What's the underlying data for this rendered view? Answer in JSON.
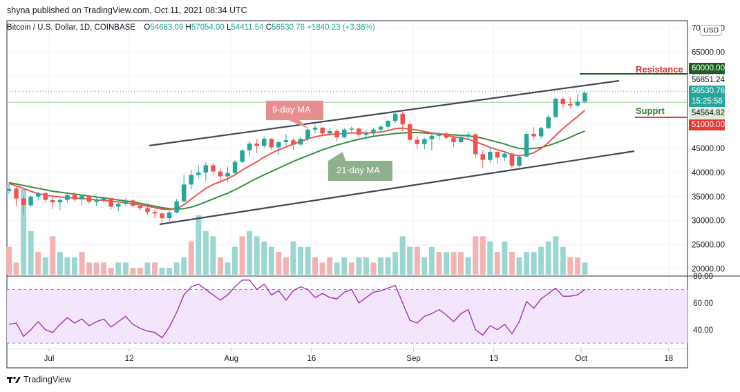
{
  "header": {
    "publisher_line": "shyna published on TradingView.com, Oct 11, 2021 08:34 UTC"
  },
  "symbol": {
    "name": "Bitcoin / U.S. Dollar, 1D, COINBASE",
    "open_label": "O",
    "open": "54683.09",
    "high_label": "H",
    "high": "57054.00",
    "low_label": "L",
    "low": "54411.54",
    "close_label": "C",
    "close": "56530.76",
    "change": "+1840.23 (+3.36%)"
  },
  "currency_button": "USD",
  "price_tags": {
    "resistance_level": "60000.00",
    "upper_dotted": "56851.24",
    "last_price": "56530.76",
    "countdown": "15:25:56",
    "lower_level": "54564.82",
    "support_level": "51000.00"
  },
  "annotations": {
    "resistance": "Resistance",
    "support": "Supprt",
    "ma9": "9-day MA",
    "ma21": "21-day MA"
  },
  "footer": {
    "brand_icon": "tradingview-logo-icon",
    "brand": "TradingView"
  },
  "colors": {
    "up": "#26a69a",
    "down": "#ef5350",
    "ma9": "#ef5350",
    "ma21": "#388e3c",
    "rsi": "#9c27b0",
    "rsi_band": "#f3e5fb",
    "resistance_tag": "#1b5e20",
    "support_tag": "#e53935",
    "channel": "#434651"
  },
  "chart_data": {
    "type": "candlestick",
    "price_axis": {
      "ticks": [
        "70000.00",
        "65000.00",
        "60000.00",
        "55000.00",
        "50000.00",
        "45000.00",
        "40000.00",
        "35000.00",
        "30000.00",
        "25000.00",
        "20000.00"
      ],
      "range": [
        18500,
        71500
      ]
    },
    "time_axis": {
      "labels": [
        "Jul",
        "12",
        "Aug",
        "16",
        "Sep",
        "13",
        "Oct",
        "18"
      ]
    },
    "rsi_axis": {
      "ticks": [
        "80.00",
        "60.00",
        "40.00"
      ],
      "band": [
        30,
        70
      ],
      "range": [
        26,
        80
      ]
    },
    "candles": [
      {
        "o": 36200,
        "h": 37800,
        "l": 35500,
        "c": 36600
      },
      {
        "o": 36600,
        "h": 37000,
        "l": 33000,
        "c": 34600
      },
      {
        "o": 34600,
        "h": 35200,
        "l": 31200,
        "c": 33200
      },
      {
        "o": 33200,
        "h": 35400,
        "l": 32800,
        "c": 35000
      },
      {
        "o": 35000,
        "h": 36000,
        "l": 34200,
        "c": 35700
      },
      {
        "o": 35700,
        "h": 35900,
        "l": 33800,
        "c": 34300
      },
      {
        "o": 34300,
        "h": 35000,
        "l": 32400,
        "c": 33800
      },
      {
        "o": 33800,
        "h": 34600,
        "l": 32200,
        "c": 34300
      },
      {
        "o": 34300,
        "h": 35600,
        "l": 33800,
        "c": 35300
      },
      {
        "o": 35300,
        "h": 36000,
        "l": 33900,
        "c": 34400
      },
      {
        "o": 34400,
        "h": 35300,
        "l": 33200,
        "c": 35100
      },
      {
        "o": 35100,
        "h": 35300,
        "l": 33500,
        "c": 33900
      },
      {
        "o": 33900,
        "h": 34800,
        "l": 33100,
        "c": 34300
      },
      {
        "o": 34300,
        "h": 35000,
        "l": 33700,
        "c": 34700
      },
      {
        "o": 34700,
        "h": 34800,
        "l": 32300,
        "c": 32900
      },
      {
        "o": 32900,
        "h": 33700,
        "l": 32000,
        "c": 33500
      },
      {
        "o": 33500,
        "h": 34700,
        "l": 33100,
        "c": 34200
      },
      {
        "o": 34200,
        "h": 34400,
        "l": 32700,
        "c": 33100
      },
      {
        "o": 33100,
        "h": 33600,
        "l": 32100,
        "c": 32600
      },
      {
        "o": 32600,
        "h": 33200,
        "l": 31200,
        "c": 31800
      },
      {
        "o": 31800,
        "h": 32300,
        "l": 30500,
        "c": 31500
      },
      {
        "o": 31500,
        "h": 31800,
        "l": 29300,
        "c": 30500
      },
      {
        "o": 30500,
        "h": 32100,
        "l": 29900,
        "c": 31700
      },
      {
        "o": 31700,
        "h": 34500,
        "l": 31500,
        "c": 34000
      },
      {
        "o": 34000,
        "h": 39500,
        "l": 33800,
        "c": 37500
      },
      {
        "o": 37500,
        "h": 40600,
        "l": 36500,
        "c": 39500
      },
      {
        "o": 39500,
        "h": 41500,
        "l": 38800,
        "c": 40000
      },
      {
        "o": 40000,
        "h": 42100,
        "l": 38200,
        "c": 41500
      },
      {
        "o": 41500,
        "h": 42000,
        "l": 39500,
        "c": 40200
      },
      {
        "o": 40200,
        "h": 40800,
        "l": 37900,
        "c": 39200
      },
      {
        "o": 39200,
        "h": 41200,
        "l": 38100,
        "c": 39900
      },
      {
        "o": 39900,
        "h": 42500,
        "l": 39700,
        "c": 42200
      },
      {
        "o": 42200,
        "h": 44700,
        "l": 42000,
        "c": 44600
      },
      {
        "o": 44600,
        "h": 46500,
        "l": 43200,
        "c": 46000
      },
      {
        "o": 46000,
        "h": 46900,
        "l": 44000,
        "c": 45500
      },
      {
        "o": 45500,
        "h": 47500,
        "l": 45000,
        "c": 47000
      },
      {
        "o": 47000,
        "h": 47200,
        "l": 44600,
        "c": 45200
      },
      {
        "o": 45200,
        "h": 46400,
        "l": 43800,
        "c": 46300
      },
      {
        "o": 46300,
        "h": 48000,
        "l": 45400,
        "c": 46700
      },
      {
        "o": 46700,
        "h": 47100,
        "l": 44600,
        "c": 45800
      },
      {
        "o": 45800,
        "h": 47500,
        "l": 45400,
        "c": 47000
      },
      {
        "o": 47000,
        "h": 49300,
        "l": 46500,
        "c": 48900
      },
      {
        "o": 48900,
        "h": 49900,
        "l": 48100,
        "c": 49300
      },
      {
        "o": 49300,
        "h": 49500,
        "l": 47500,
        "c": 48100
      },
      {
        "o": 48100,
        "h": 49300,
        "l": 47600,
        "c": 48600
      },
      {
        "o": 48600,
        "h": 49000,
        "l": 46500,
        "c": 47300
      },
      {
        "o": 47300,
        "h": 49200,
        "l": 47100,
        "c": 48900
      },
      {
        "o": 48900,
        "h": 49600,
        "l": 48400,
        "c": 49100
      },
      {
        "o": 49100,
        "h": 49400,
        "l": 47200,
        "c": 47800
      },
      {
        "o": 47800,
        "h": 48900,
        "l": 46900,
        "c": 48100
      },
      {
        "o": 48100,
        "h": 49200,
        "l": 47600,
        "c": 48900
      },
      {
        "o": 48900,
        "h": 49800,
        "l": 48300,
        "c": 49500
      },
      {
        "o": 49500,
        "h": 51000,
        "l": 48800,
        "c": 50700
      },
      {
        "o": 50700,
        "h": 52600,
        "l": 50200,
        "c": 52200
      },
      {
        "o": 52200,
        "h": 52900,
        "l": 48600,
        "c": 50000
      },
      {
        "o": 50000,
        "h": 50500,
        "l": 46400,
        "c": 46800
      },
      {
        "o": 46800,
        "h": 47500,
        "l": 44900,
        "c": 45900
      },
      {
        "o": 45900,
        "h": 47200,
        "l": 44800,
        "c": 46900
      },
      {
        "o": 46900,
        "h": 48100,
        "l": 44600,
        "c": 47600
      },
      {
        "o": 47600,
        "h": 48400,
        "l": 46700,
        "c": 48100
      },
      {
        "o": 48100,
        "h": 48500,
        "l": 46800,
        "c": 47200
      },
      {
        "o": 47200,
        "h": 47600,
        "l": 45300,
        "c": 46300
      },
      {
        "o": 46300,
        "h": 47800,
        "l": 46000,
        "c": 47400
      },
      {
        "o": 47400,
        "h": 48400,
        "l": 46900,
        "c": 47900
      },
      {
        "o": 47900,
        "h": 48200,
        "l": 43000,
        "c": 43800
      },
      {
        "o": 43800,
        "h": 44600,
        "l": 41000,
        "c": 42600
      },
      {
        "o": 42600,
        "h": 45000,
        "l": 42000,
        "c": 44300
      },
      {
        "o": 44300,
        "h": 44400,
        "l": 41700,
        "c": 43100
      },
      {
        "o": 43100,
        "h": 44300,
        "l": 42400,
        "c": 43900
      },
      {
        "o": 43900,
        "h": 44200,
        "l": 40900,
        "c": 41400
      },
      {
        "o": 41400,
        "h": 43600,
        "l": 41100,
        "c": 43300
      },
      {
        "o": 43300,
        "h": 48500,
        "l": 43100,
        "c": 48000
      },
      {
        "o": 48000,
        "h": 49400,
        "l": 46800,
        "c": 47500
      },
      {
        "o": 47500,
        "h": 49500,
        "l": 46900,
        "c": 49200
      },
      {
        "o": 49200,
        "h": 51900,
        "l": 49000,
        "c": 51500
      },
      {
        "o": 51500,
        "h": 55700,
        "l": 51300,
        "c": 55300
      },
      {
        "o": 55300,
        "h": 55700,
        "l": 53400,
        "c": 54200
      },
      {
        "o": 54200,
        "h": 55500,
        "l": 53300,
        "c": 53900
      },
      {
        "o": 53900,
        "h": 56400,
        "l": 53500,
        "c": 54700
      },
      {
        "o": 54683.09,
        "h": 57054,
        "l": 54411.54,
        "c": 56530.76
      }
    ],
    "ma9": [
      37700,
      37200,
      36700,
      36100,
      35600,
      35300,
      35100,
      34900,
      34800,
      34700,
      34600,
      34500,
      34300,
      34200,
      34000,
      33900,
      33700,
      33500,
      33300,
      33000,
      32700,
      32400,
      32300,
      32500,
      33300,
      34500,
      35600,
      36700,
      37500,
      38100,
      38700,
      39500,
      40500,
      41400,
      42200,
      43200,
      44000,
      44700,
      45300,
      45900,
      46400,
      47000,
      47400,
      47700,
      47900,
      48000,
      48100,
      48200,
      48200,
      48200,
      48300,
      48400,
      48700,
      49100,
      49200,
      49000,
      48800,
      48500,
      48200,
      48000,
      47700,
      47400,
      47200,
      46900,
      46400,
      45800,
      45200,
      44700,
      44300,
      43700,
      43500,
      43700,
      44100,
      45000,
      46200,
      47700,
      49100,
      50400,
      51600,
      52900
    ],
    "ma21": [
      37900,
      37600,
      37300,
      37000,
      36700,
      36400,
      36100,
      35900,
      35700,
      35500,
      35300,
      35100,
      34900,
      34700,
      34500,
      34300,
      34100,
      33900,
      33600,
      33300,
      33000,
      32700,
      32500,
      32400,
      32500,
      32800,
      33300,
      33900,
      34500,
      35100,
      35700,
      36400,
      37200,
      38000,
      38800,
      39500,
      40200,
      40900,
      41600,
      42300,
      42900,
      43500,
      44100,
      44700,
      45200,
      45700,
      46100,
      46500,
      46900,
      47200,
      47500,
      47700,
      47900,
      48100,
      48200,
      48300,
      48300,
      48200,
      48100,
      48000,
      47900,
      47800,
      47700,
      47600,
      47400,
      47100,
      46700,
      46300,
      45900,
      45400,
      45000,
      44900,
      45000,
      45200,
      45600,
      46100,
      46700,
      47300,
      48000,
      48600
    ],
    "rsi": [
      44,
      45,
      35,
      40,
      46,
      40,
      38,
      44,
      49,
      45,
      48,
      43,
      46,
      48,
      42,
      46,
      50,
      44,
      41,
      39,
      38,
      34,
      42,
      53,
      66,
      72,
      74,
      70,
      66,
      62,
      66,
      72,
      77,
      77,
      70,
      74,
      66,
      69,
      62,
      69,
      72,
      70,
      64,
      67,
      64,
      63,
      68,
      70,
      60,
      64,
      68,
      69,
      71,
      73,
      60,
      47,
      45,
      50,
      52,
      55,
      51,
      46,
      52,
      55,
      40,
      36,
      43,
      40,
      44,
      37,
      46,
      61,
      56,
      63,
      67,
      71,
      65,
      65,
      66,
      70
    ],
    "volume": [
      [
        24,
        0
      ],
      [
        21,
        0
      ],
      [
        35,
        1
      ],
      [
        27,
        1
      ],
      [
        23,
        0
      ],
      [
        22,
        1
      ],
      [
        26,
        0
      ],
      [
        23,
        1
      ],
      [
        22,
        1
      ],
      [
        22,
        1
      ],
      [
        23,
        0
      ],
      [
        21,
        0
      ],
      [
        21,
        0
      ],
      [
        21,
        0
      ],
      [
        20,
        0
      ],
      [
        21,
        1
      ],
      [
        21,
        1
      ],
      [
        20,
        0
      ],
      [
        20,
        0
      ],
      [
        21,
        1
      ],
      [
        21,
        0
      ],
      [
        20,
        1
      ],
      [
        20,
        1
      ],
      [
        21,
        1
      ],
      [
        22,
        1
      ],
      [
        25,
        0
      ],
      [
        30,
        1
      ],
      [
        27,
        1
      ],
      [
        26,
        1
      ],
      [
        22,
        0
      ],
      [
        21,
        1
      ],
      [
        24,
        1
      ],
      [
        26,
        0
      ],
      [
        27,
        1
      ],
      [
        26,
        1
      ],
      [
        25,
        1
      ],
      [
        24,
        1
      ],
      [
        23,
        0
      ],
      [
        22,
        0
      ],
      [
        25,
        1
      ],
      [
        24,
        1
      ],
      [
        24,
        1
      ],
      [
        22,
        0
      ],
      [
        21,
        0
      ],
      [
        22,
        0
      ],
      [
        21,
        1
      ],
      [
        22,
        1
      ],
      [
        21,
        0
      ],
      [
        22,
        1
      ],
      [
        22,
        1
      ],
      [
        21,
        0
      ],
      [
        22,
        1
      ],
      [
        22,
        1
      ],
      [
        23,
        1
      ],
      [
        26,
        1
      ],
      [
        24,
        1
      ],
      [
        24,
        0
      ],
      [
        22,
        1
      ],
      [
        24,
        1
      ],
      [
        23,
        0
      ],
      [
        23,
        1
      ],
      [
        23,
        0
      ],
      [
        23,
        0
      ],
      [
        22,
        1
      ],
      [
        26,
        0
      ],
      [
        26,
        0
      ],
      [
        25,
        1
      ],
      [
        23,
        0
      ],
      [
        25,
        1
      ],
      [
        23,
        0
      ],
      [
        22,
        1
      ],
      [
        23,
        1
      ],
      [
        23,
        1
      ],
      [
        24,
        1
      ],
      [
        25,
        1
      ],
      [
        26,
        1
      ],
      [
        24,
        1
      ],
      [
        22,
        0
      ],
      [
        22,
        0
      ],
      [
        21,
        1
      ]
    ]
  }
}
